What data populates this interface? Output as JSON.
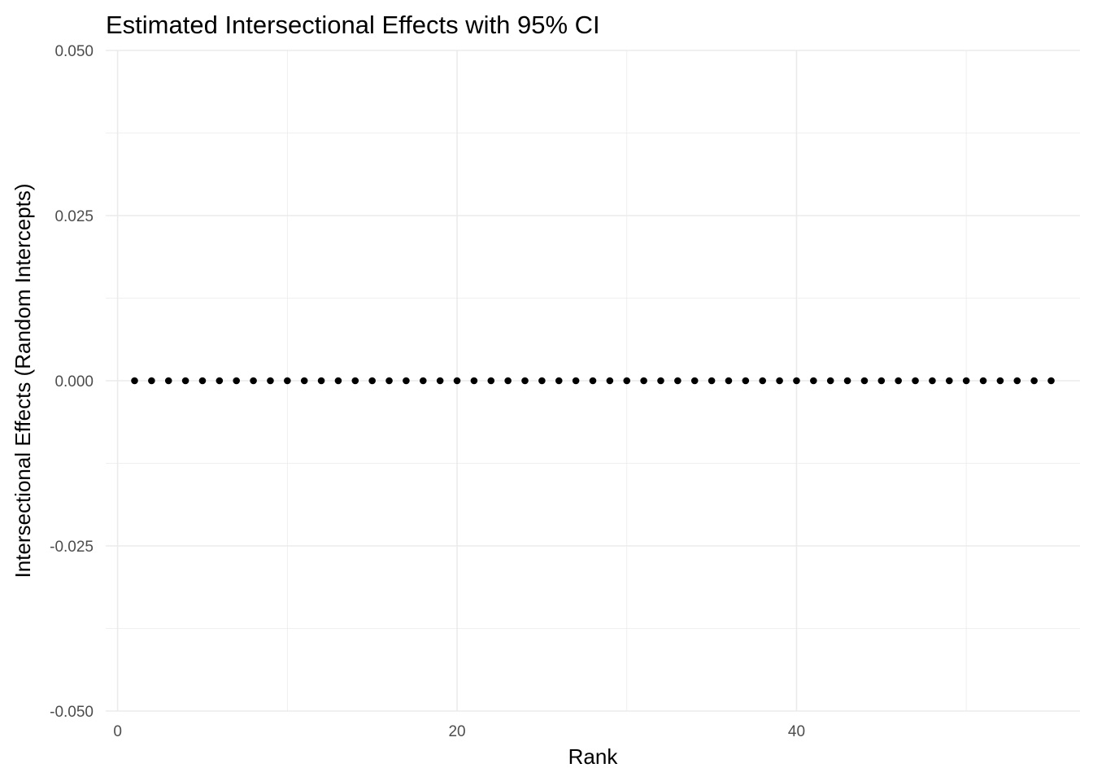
{
  "chart_data": {
    "type": "scatter",
    "title": "Estimated Intersectional Effects with 95% CI",
    "xlabel": "Rank",
    "ylabel": "Intersectional Effects (Random Intercepts)",
    "xlim": [
      -0.7,
      56.7
    ],
    "ylim": [
      -0.05,
      0.05
    ],
    "x_ticks": [
      0,
      20,
      40
    ],
    "x_tick_labels": [
      "0",
      "20",
      "40"
    ],
    "y_ticks": [
      -0.05,
      -0.025,
      0.0,
      0.025,
      0.05
    ],
    "y_tick_labels": [
      "-0.050",
      "-0.025",
      "0.000",
      "0.025",
      "0.050"
    ],
    "x_minor_grid": [
      10,
      30,
      50
    ],
    "y_minor_grid": [
      -0.0375,
      -0.0125,
      0.0125,
      0.0375
    ],
    "grid": true,
    "point_color": "#000000",
    "grid_color": "#ebebeb",
    "series": [
      {
        "x": [
          1,
          2,
          3,
          4,
          5,
          6,
          7,
          8,
          9,
          10,
          11,
          12,
          13,
          14,
          15,
          16,
          17,
          18,
          19,
          20,
          21,
          22,
          23,
          24,
          25,
          26,
          27,
          28,
          29,
          30,
          31,
          32,
          33,
          34,
          35,
          36,
          37,
          38,
          39,
          40,
          41,
          42,
          43,
          44,
          45,
          46,
          47,
          48,
          49,
          50,
          51,
          52,
          53,
          54,
          55
        ],
        "y": [
          0,
          0,
          0,
          0,
          0,
          0,
          0,
          0,
          0,
          0,
          0,
          0,
          0,
          0,
          0,
          0,
          0,
          0,
          0,
          0,
          0,
          0,
          0,
          0,
          0,
          0,
          0,
          0,
          0,
          0,
          0,
          0,
          0,
          0,
          0,
          0,
          0,
          0,
          0,
          0,
          0,
          0,
          0,
          0,
          0,
          0,
          0,
          0,
          0,
          0,
          0,
          0,
          0,
          0,
          0
        ],
        "ci_lower": [
          0,
          0,
          0,
          0,
          0,
          0,
          0,
          0,
          0,
          0,
          0,
          0,
          0,
          0,
          0,
          0,
          0,
          0,
          0,
          0,
          0,
          0,
          0,
          0,
          0,
          0,
          0,
          0,
          0,
          0,
          0,
          0,
          0,
          0,
          0,
          0,
          0,
          0,
          0,
          0,
          0,
          0,
          0,
          0,
          0,
          0,
          0,
          0,
          0,
          0,
          0,
          0,
          0,
          0,
          0
        ],
        "ci_upper": [
          0,
          0,
          0,
          0,
          0,
          0,
          0,
          0,
          0,
          0,
          0,
          0,
          0,
          0,
          0,
          0,
          0,
          0,
          0,
          0,
          0,
          0,
          0,
          0,
          0,
          0,
          0,
          0,
          0,
          0,
          0,
          0,
          0,
          0,
          0,
          0,
          0,
          0,
          0,
          0,
          0,
          0,
          0,
          0,
          0,
          0,
          0,
          0,
          0,
          0,
          0,
          0,
          0,
          0,
          0
        ]
      }
    ]
  }
}
